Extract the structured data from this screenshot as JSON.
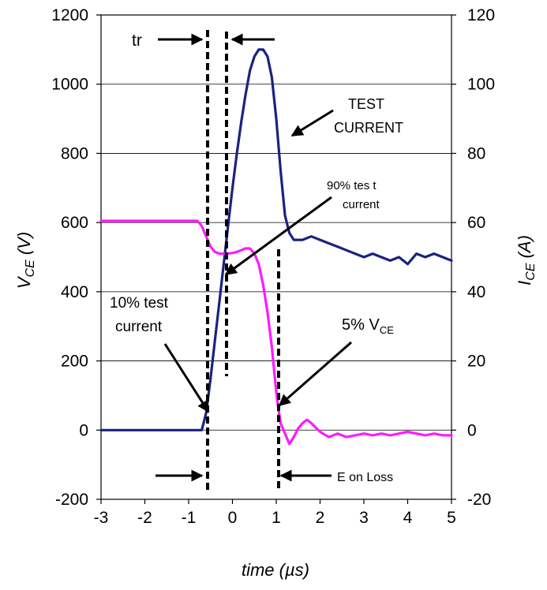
{
  "chart_data": {
    "type": "line",
    "title": "",
    "xlabel": "time (µs)",
    "ylabel_left": "V_CE (V)",
    "ylabel_right": "I_CE (A)",
    "xlim": [
      -3,
      5
    ],
    "ylim_left": [
      -200,
      1200
    ],
    "ylim_right": [
      -20,
      120
    ],
    "x_ticks": [
      "-3",
      "-2",
      "-1",
      "0",
      "1",
      "2",
      "3",
      "4",
      "5"
    ],
    "y_left_ticks": [
      "-200",
      "0",
      "200",
      "400",
      "600",
      "800",
      "1000",
      "1200"
    ],
    "y_right_ticks": [
      "-20",
      "0",
      "20",
      "40",
      "60",
      "80",
      "100",
      "120"
    ],
    "grid": true,
    "series": [
      {
        "name": "",
        "axis": "right",
        "color": "#1a237e",
        "x": [
          -3.0,
          -2.8,
          -2.6,
          -2.4,
          -2.2,
          -2.0,
          -1.8,
          -1.6,
          -1.4,
          -1.2,
          -1.0,
          -0.8,
          -0.7,
          -0.6,
          -0.5,
          -0.4,
          -0.3,
          -0.2,
          -0.1,
          0.0,
          0.1,
          0.2,
          0.3,
          0.4,
          0.5,
          0.6,
          0.7,
          0.8,
          0.9,
          1.0,
          1.1,
          1.2,
          1.3,
          1.4,
          1.5,
          1.6,
          1.8,
          2.0,
          2.2,
          2.4,
          2.6,
          2.8,
          3.0,
          3.2,
          3.4,
          3.6,
          3.8,
          4.0,
          4.2,
          4.4,
          4.6,
          4.8,
          5.0
        ],
        "y": [
          0,
          0,
          0,
          0,
          0,
          0,
          0,
          0,
          0,
          0,
          0,
          0,
          0,
          5,
          15,
          26,
          37,
          48,
          59,
          70,
          80,
          89,
          97,
          104,
          108,
          110,
          110,
          108,
          102,
          90,
          75,
          62,
          57,
          55,
          55,
          55,
          56,
          55,
          54,
          53,
          52,
          51,
          50,
          51,
          50,
          49,
          50,
          48,
          51,
          50,
          51,
          50,
          49
        ]
      },
      {
        "name": "",
        "axis": "left",
        "color": "#ff1aff",
        "x": [
          -3.0,
          -2.5,
          -2.0,
          -1.5,
          -1.0,
          -0.8,
          -0.7,
          -0.6,
          -0.5,
          -0.4,
          -0.3,
          -0.2,
          -0.1,
          0.0,
          0.1,
          0.2,
          0.3,
          0.4,
          0.5,
          0.6,
          0.7,
          0.8,
          0.9,
          1.0,
          1.05,
          1.1,
          1.2,
          1.3,
          1.4,
          1.5,
          1.6,
          1.7,
          1.8,
          2.0,
          2.2,
          2.4,
          2.6,
          2.8,
          3.0,
          3.2,
          3.4,
          3.6,
          3.8,
          4.0,
          4.2,
          4.4,
          4.6,
          4.8,
          5.0
        ],
        "y": [
          605,
          605,
          605,
          605,
          605,
          605,
          590,
          560,
          530,
          515,
          510,
          510,
          510,
          512,
          515,
          520,
          525,
          525,
          510,
          480,
          420,
          340,
          240,
          110,
          60,
          20,
          -10,
          -40,
          -20,
          5,
          20,
          30,
          20,
          -5,
          -20,
          -10,
          -20,
          -15,
          -10,
          -15,
          -10,
          -15,
          -10,
          -5,
          -10,
          -15,
          -10,
          -15,
          -15
        ]
      }
    ],
    "annotations": {
      "tr": "tr",
      "test_current_1": "TEST",
      "test_current_2": "CURRENT",
      "ninety_1": "90% tes t",
      "ninety_2": "current",
      "ten_1": "10% test",
      "ten_2": "current",
      "vce_prefix": "5% V",
      "vce_sub": "CE",
      "eon": "E on Loss"
    }
  }
}
